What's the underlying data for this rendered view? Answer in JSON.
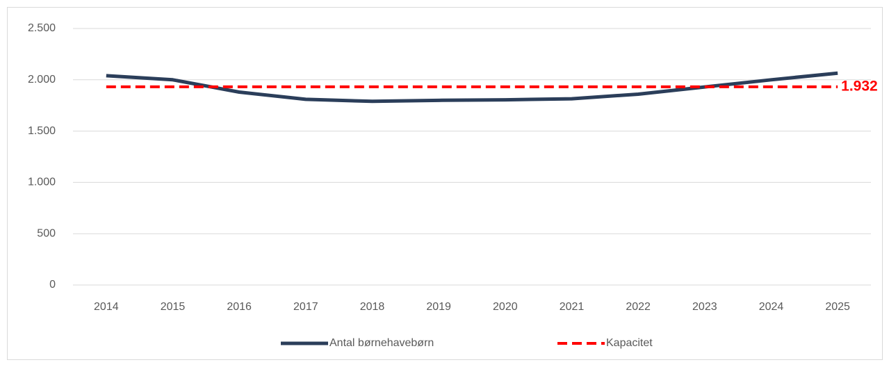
{
  "chart_data": {
    "type": "line",
    "categories": [
      "2014",
      "2015",
      "2016",
      "2017",
      "2018",
      "2019",
      "2020",
      "2021",
      "2022",
      "2023",
      "2024",
      "2025"
    ],
    "series": [
      {
        "name": "Antal børnehavebørn",
        "color": "#2b3e5a",
        "dash": false,
        "values": [
          2040,
          2000,
          1880,
          1810,
          1790,
          1800,
          1805,
          1815,
          1860,
          1930,
          2000,
          2065
        ]
      },
      {
        "name": "Kapacitet",
        "color": "#ff0000",
        "dash": true,
        "values": [
          1932,
          1932,
          1932,
          1932,
          1932,
          1932,
          1932,
          1932,
          1932,
          1932,
          1932,
          1932
        ],
        "value_labels": [
          null,
          null,
          null,
          null,
          null,
          null,
          null,
          null,
          null,
          null,
          null,
          "1.932"
        ]
      }
    ],
    "ylim": [
      0,
      2500
    ],
    "yticks": [
      0,
      500,
      {
        "value": 1000,
        "label": "1.000"
      },
      {
        "value": 1500,
        "label": "1.500"
      },
      {
        "value": 2000,
        "label": "2.000"
      },
      {
        "value": 2500,
        "label": "2.500"
      }
    ],
    "grid": true,
    "legend": "bottom"
  }
}
